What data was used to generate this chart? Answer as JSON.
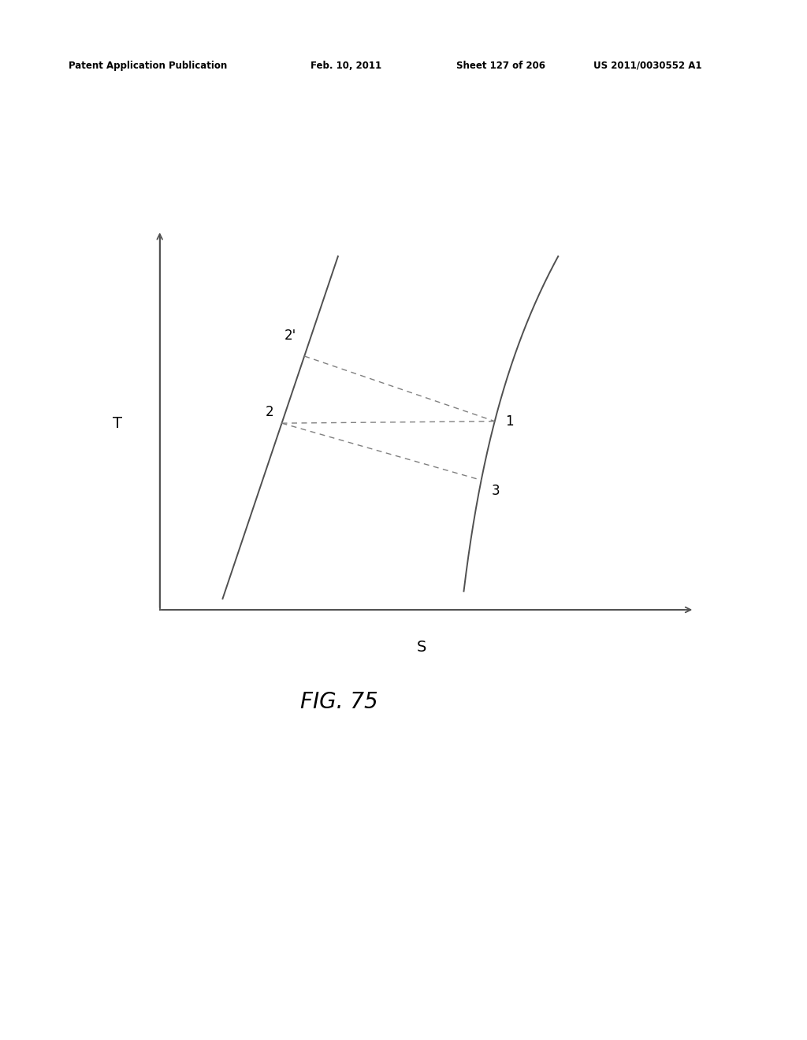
{
  "background_color": "#ffffff",
  "header_text": "Patent Application Publication",
  "header_date": "Feb. 10, 2011",
  "header_sheet": "Sheet 127 of 206",
  "header_patent": "US 2011/0030552 A1",
  "fig_label": "FIG. 75",
  "axis_label_T": "T",
  "axis_label_S": "S",
  "line_color": "#505050",
  "dashed_color": "#808080",
  "header_fontsize": 8.5,
  "fig_label_fontsize": 20
}
